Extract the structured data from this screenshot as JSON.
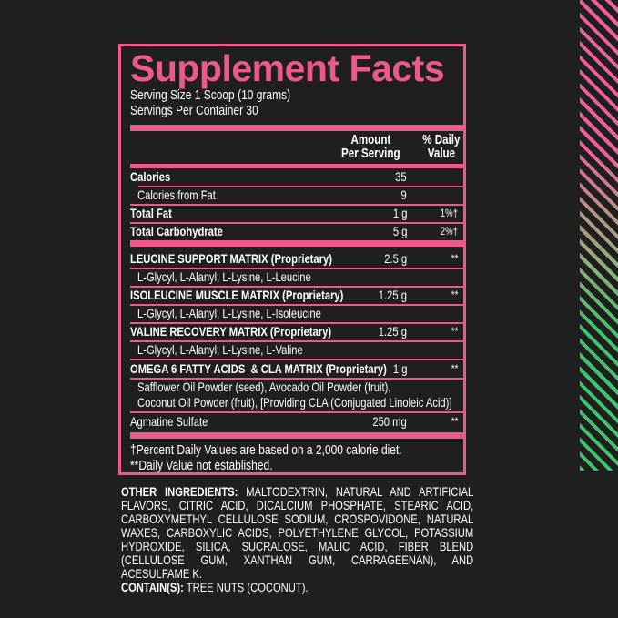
{
  "title": "Supplement Facts",
  "serving_size": "Serving Size 1 Scoop (10 grams)",
  "servings_per_container": "Servings Per Container 30",
  "columns": {
    "amount_1": "Amount",
    "amount_2": "Per Serving",
    "dv_1": "% Daily",
    "dv_2": "Value"
  },
  "rows": [
    {
      "label": "Calories",
      "amount": "35",
      "dv": ""
    },
    {
      "label": "Calories from Fat",
      "amount": "9",
      "dv": ""
    },
    {
      "label": "Total Fat",
      "amount": "1 g",
      "dv": "1%†"
    },
    {
      "label": "Total Carbohydrate",
      "amount": "5 g",
      "dv": "2%†"
    }
  ],
  "matrices": [
    {
      "name": "LEUCINE SUPPORT MATRIX",
      "suffix": "(Proprietary)",
      "amount": "2.5 g",
      "dv": "**",
      "contents": "L-Glycyl, L-Alanyl, L-Lysine, L-Leucine"
    },
    {
      "name": "ISOLEUCINE MUSCLE MATRIX",
      "suffix": "(Proprietary)",
      "amount": "1.25 g",
      "dv": "**",
      "contents": "L-Glycyl, L-Alanyl, L-Lysine, L-Isoleucine"
    },
    {
      "name": "VALINE RECOVERY MATRIX",
      "suffix": "(Proprietary)",
      "amount": "1.25 g",
      "dv": "**",
      "contents": "L-Glycyl, L-Alanyl, L-Lysine, L-Valine"
    },
    {
      "name": "OMEGA 6 FATTY ACIDS  & CLA MATRIX",
      "suffix": "(Proprietary)",
      "amount": "1 g",
      "dv": "**",
      "contents": "Safflower Oil Powder (seed), Avocado Oil Powder (fruit),",
      "contents_2": "Coconut Oil Powder (fruit), [Providing CLA (Conjugated Linoleic Acid)]"
    }
  ],
  "agmatine": {
    "label": "Agmatine Sulfate",
    "amount": "250 mg",
    "dv": "**"
  },
  "footnotes": [
    "†Percent Daily Values are based on a 2,000 calorie diet.",
    "**Daily Value not established."
  ],
  "other_ingredients_label": "OTHER INGREDIENTS:",
  "other_ingredients": "MALTODEXTRIN, NATURAL AND ARTIFICIAL FLAVORS, CITRIC ACID, DICALCIUM PHOSPHATE, STEARIC ACID, CARBOXYMETHYL CELLULOSE SODIUM, CROSPOVIDONE, NATURAL WAXES, CARBOXYLIC ACIDS, POLYETHYLENE GLYCOL, POTASSIUM HYDROXIDE, SILICA, SUCRALOSE, MALIC ACID, FIBER BLEND (CELLULOSE GUM, XANTHAN GUM, CARRAGEENAN), AND ACESULFAME K.",
  "contains_label": "CONTAIN(S):",
  "contains": "TREE NUTS (COCONUT).",
  "colors": {
    "accent": "#ec5a8a",
    "background": "#1f1f1f",
    "stripe_green": "#3fc26b"
  }
}
